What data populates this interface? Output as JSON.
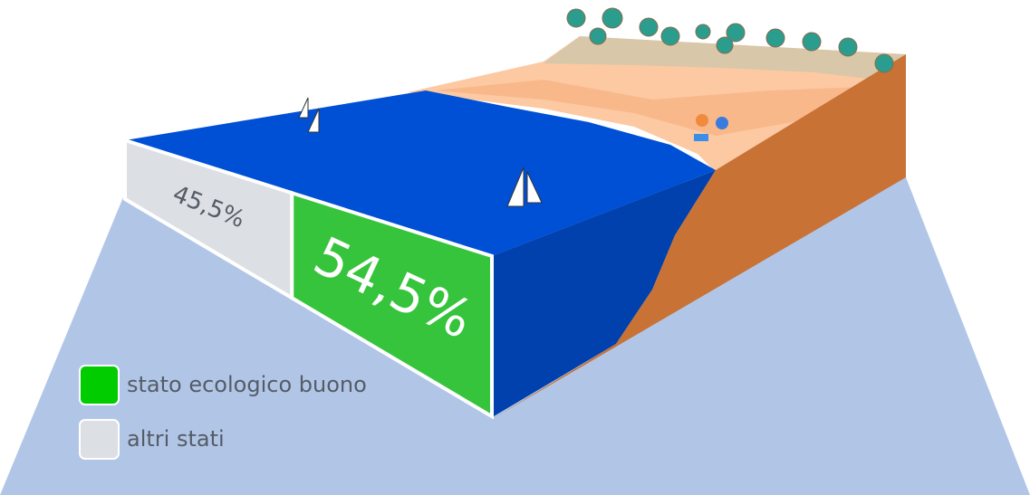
{
  "chart_data": {
    "type": "bar",
    "categories": [
      null
    ],
    "series": [
      {
        "name": "stato ecologico buono",
        "color": "#35c43b",
        "legend_color": "#00cc00",
        "values": [
          54.5
        ],
        "value_labels": [
          "54,5%"
        ]
      },
      {
        "name": "altri stati",
        "color": "#dcdfe3",
        "legend_color": "#dcdfe3",
        "values": [
          45.5
        ],
        "value_labels": [
          "45,5%"
        ]
      }
    ]
  }
}
